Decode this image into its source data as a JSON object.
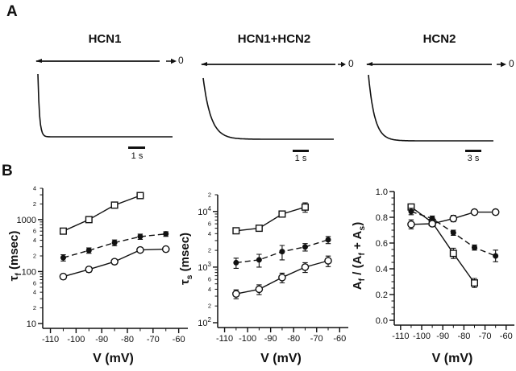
{
  "figure": {
    "background": "#ffffff",
    "ink_color": "#111111"
  },
  "panel_a": {
    "label": "A",
    "traces": [
      {
        "title": "HCN1",
        "zero_label": "0",
        "scalebar_label": "1 s"
      },
      {
        "title": "HCN1+HCN2",
        "zero_label": "0",
        "scalebar_label": "1 s"
      },
      {
        "title": "HCN2",
        "zero_label": "0",
        "scalebar_label": "3 s"
      }
    ]
  },
  "panel_b": {
    "label": "B"
  },
  "chart_data": [
    {
      "type": "line",
      "title": "",
      "xlabel": "V (mV)",
      "ylabel": "τf (msec)",
      "ylabel_rich": [
        [
          "τ",
          false
        ],
        [
          "f",
          true
        ],
        [
          " (msec)",
          false
        ]
      ],
      "yscale": "log",
      "ylim": [
        10,
        4000
      ],
      "xticks": [
        -110,
        -100,
        -90,
        -80,
        -70,
        -60
      ],
      "x_minor_step": 5,
      "grid": false,
      "legend": "none",
      "series": [
        {
          "name": "open-square",
          "marker": "square-open",
          "line": "solid",
          "x": [
            -105,
            -95,
            -85,
            -75
          ],
          "y": [
            600,
            1000,
            1900,
            2900
          ],
          "yerr": [
            60,
            90,
            200,
            350
          ]
        },
        {
          "name": "filled-circle",
          "marker": "circle-filled",
          "line": "dashed",
          "x": [
            -105,
            -95,
            -85,
            -75,
            -65
          ],
          "y": [
            185,
            255,
            360,
            470,
            530
          ],
          "yerr": [
            25,
            30,
            45,
            55,
            55
          ]
        },
        {
          "name": "open-circle",
          "marker": "circle-open",
          "line": "solid",
          "x": [
            -105,
            -95,
            -85,
            -75,
            -65
          ],
          "y": [
            80,
            110,
            155,
            260,
            270
          ],
          "yerr": [
            9,
            13,
            18,
            24,
            22
          ]
        }
      ]
    },
    {
      "type": "line",
      "title": "",
      "xlabel": "V (mV)",
      "ylabel": "τs (msec)",
      "ylabel_rich": [
        [
          "τ",
          false
        ],
        [
          "s",
          true
        ],
        [
          " (msec)",
          false
        ]
      ],
      "yscale": "log",
      "ylim": [
        100,
        20000
      ],
      "y_power_labels": true,
      "xticks": [
        -110,
        -100,
        -90,
        -80,
        -70,
        -60
      ],
      "x_minor_step": 5,
      "grid": false,
      "legend": "none",
      "series": [
        {
          "name": "open-square",
          "marker": "square-open",
          "line": "solid",
          "x": [
            -105,
            -95,
            -85,
            -75
          ],
          "y": [
            4500,
            5000,
            9000,
            12000
          ],
          "yerr": [
            500,
            500,
            800,
            2300
          ]
        },
        {
          "name": "filled-circle",
          "marker": "circle-filled",
          "line": "dashed",
          "x": [
            -105,
            -95,
            -85,
            -75,
            -65
          ],
          "y": [
            1200,
            1350,
            1900,
            2300,
            3100
          ],
          "yerr": [
            250,
            350,
            550,
            350,
            450
          ]
        },
        {
          "name": "open-circle",
          "marker": "circle-open",
          "line": "solid",
          "x": [
            -105,
            -95,
            -85,
            -75,
            -65
          ],
          "y": [
            330,
            400,
            650,
            1000,
            1300
          ],
          "yerr": [
            60,
            80,
            130,
            200,
            280
          ]
        }
      ]
    },
    {
      "type": "line",
      "title": "",
      "xlabel": "V (mV)",
      "ylabel": "Af / (Af + As)",
      "ylabel_rich": [
        [
          "A",
          false
        ],
        [
          "f",
          true
        ],
        [
          " / (A",
          false
        ],
        [
          "f",
          true
        ],
        [
          " + A",
          false
        ],
        [
          "s",
          true
        ],
        [
          ")",
          false
        ]
      ],
      "yscale": "linear",
      "ylim": [
        0,
        1
      ],
      "yticks": [
        0,
        0.2,
        0.4,
        0.6,
        0.8,
        1.0
      ],
      "y_minor_step": 0.05,
      "xticks": [
        -110,
        -100,
        -90,
        -80,
        -70,
        -60
      ],
      "x_minor_step": 5,
      "grid": false,
      "legend": "none",
      "series": [
        {
          "name": "open-square",
          "marker": "square-open",
          "line": "solid",
          "x": [
            -105,
            -95,
            -85,
            -75
          ],
          "y": [
            0.88,
            0.76,
            0.52,
            0.29
          ],
          "yerr": [
            0.02,
            0.025,
            0.04,
            0.035
          ]
        },
        {
          "name": "filled-circle",
          "marker": "circle-filled",
          "line": "dashed",
          "x": [
            -105,
            -95,
            -85,
            -75,
            -65
          ],
          "y": [
            0.845,
            0.79,
            0.68,
            0.565,
            0.5
          ],
          "yerr": [
            0.025,
            0.02,
            0.02,
            0.02,
            0.045
          ]
        },
        {
          "name": "open-circle",
          "marker": "circle-open",
          "line": "solid",
          "x": [
            -105,
            -95,
            -85,
            -75,
            -65
          ],
          "y": [
            0.745,
            0.75,
            0.79,
            0.84,
            0.84
          ],
          "yerr": [
            0.035,
            0.02,
            0.025,
            0.015,
            0.015
          ]
        }
      ]
    }
  ]
}
